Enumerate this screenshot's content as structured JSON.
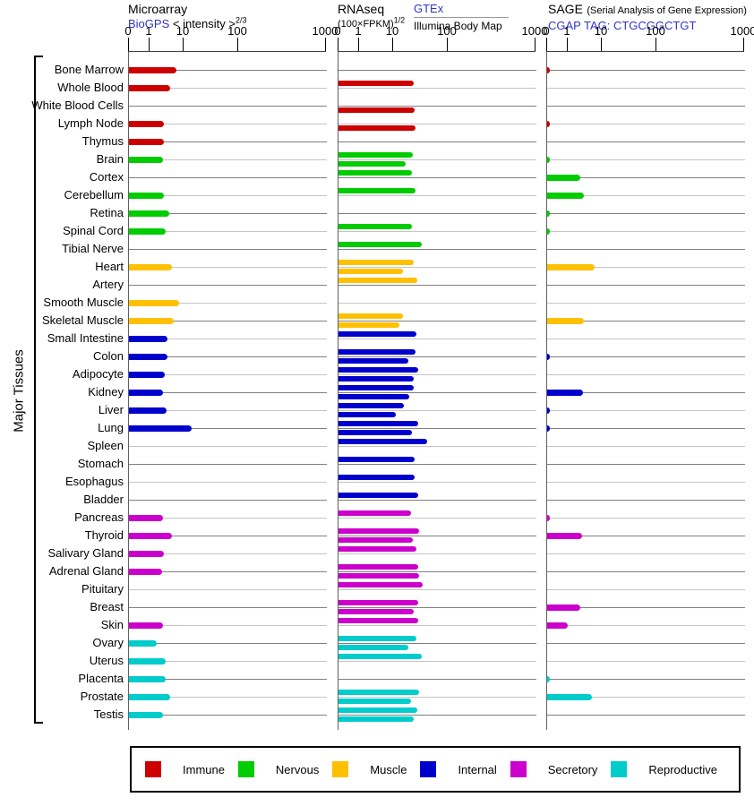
{
  "header": {
    "microarray": {
      "title": "Microarray",
      "source_link": "BioGPS",
      "unit_label": "< intensity >",
      "unit_exponent": "2/3"
    },
    "rnaseq": {
      "title": "RNAseq",
      "unit_label": "(100×FPKM)",
      "unit_exponent": "1/2",
      "source_link": "GTEx",
      "source_secondary": "Illumina Body Map"
    },
    "sage": {
      "title": "SAGE",
      "title_note": "(Serial Analysis of Gene Expression)",
      "source_link": "CGAP",
      "tag_text": "TAG: CTGCGGCTGT"
    }
  },
  "axis_ticks": [
    "0",
    "1",
    "10",
    "100",
    "1000"
  ],
  "side_label": "Major Tissues",
  "colors": {
    "link": "#3333CC",
    "grid_dark": "#808080",
    "grid_light": "#C4C4C4"
  },
  "legend": [
    {
      "label": "Immune",
      "color": "#CC0000"
    },
    {
      "label": "Nervous",
      "color": "#00CC00"
    },
    {
      "label": "Muscle",
      "color": "#FFC000"
    },
    {
      "label": "Internal",
      "color": "#0000CC"
    },
    {
      "label": "Secretory",
      "color": "#CC00CC"
    },
    {
      "label": "Reproductive",
      "color": "#00CCCC"
    }
  ],
  "chart_data": {
    "type": "bar",
    "orientation": "horizontal",
    "x_scale": "nonlinear expression scale with ticks 0, 1, 10, 100, 1000 per panel",
    "x_ticks": [
      0,
      1,
      10,
      100,
      1000
    ],
    "panels": [
      "Microarray (BioGPS)",
      "RNAseq (GTEx / Illumina Body Map)",
      "SAGE (CGAP)"
    ],
    "series": [
      "microarray",
      "rnaseq_gtex",
      "rnaseq_bodymap",
      "sage"
    ],
    "tissues": [
      {
        "name": "Bone Marrow",
        "group": "Immune",
        "microarray": 6,
        "rnaseq_gtex": null,
        "rnaseq_bodymap": null,
        "sage": 0.1
      },
      {
        "name": "Whole Blood",
        "group": "Immune",
        "microarray": 4,
        "rnaseq_gtex": 24,
        "rnaseq_bodymap": null,
        "sage": null
      },
      {
        "name": "White Blood Cells",
        "group": "Immune",
        "microarray": null,
        "rnaseq_gtex": null,
        "rnaseq_bodymap": 25,
        "sage": null
      },
      {
        "name": "Lymph Node",
        "group": "Immune",
        "microarray": 2.7,
        "rnaseq_gtex": null,
        "rnaseq_bodymap": 26,
        "sage": 0.1
      },
      {
        "name": "Thymus",
        "group": "Immune",
        "microarray": 2.7,
        "rnaseq_gtex": null,
        "rnaseq_bodymap": null,
        "sage": null
      },
      {
        "name": "Brain",
        "group": "Nervous",
        "microarray": 2.5,
        "rnaseq_gtex": 23,
        "rnaseq_bodymap": 17,
        "sage": 0.1
      },
      {
        "name": "Cortex",
        "group": "Nervous",
        "microarray": null,
        "rnaseq_gtex": 22,
        "rnaseq_bodymap": null,
        "sage": 2.4
      },
      {
        "name": "Cerebellum",
        "group": "Nervous",
        "microarray": 2.6,
        "rnaseq_gtex": 26,
        "rnaseq_bodymap": null,
        "sage": 3
      },
      {
        "name": "Retina",
        "group": "Nervous",
        "microarray": 3.9,
        "rnaseq_gtex": null,
        "rnaseq_bodymap": null,
        "sage": 0.1
      },
      {
        "name": "Spinal Cord",
        "group": "Nervous",
        "microarray": 3,
        "rnaseq_gtex": 22,
        "rnaseq_bodymap": null,
        "sage": 0.1
      },
      {
        "name": "Tibial Nerve",
        "group": "Nervous",
        "microarray": null,
        "rnaseq_gtex": 33,
        "rnaseq_bodymap": null,
        "sage": null
      },
      {
        "name": "Heart",
        "group": "Muscle",
        "microarray": 4.6,
        "rnaseq_gtex": 24,
        "rnaseq_bodymap": 15,
        "sage": 6
      },
      {
        "name": "Artery",
        "group": "Muscle",
        "microarray": null,
        "rnaseq_gtex": 28,
        "rnaseq_bodymap": null,
        "sage": null
      },
      {
        "name": "Smooth Muscle",
        "group": "Muscle",
        "microarray": 7.4,
        "rnaseq_gtex": null,
        "rnaseq_bodymap": null,
        "sage": null
      },
      {
        "name": "Skeletal Muscle",
        "group": "Muscle",
        "microarray": 5,
        "rnaseq_gtex": 15,
        "rnaseq_bodymap": 13,
        "sage": 2.9
      },
      {
        "name": "Small Intestine",
        "group": "Internal",
        "microarray": 3.4,
        "rnaseq_gtex": 27,
        "rnaseq_bodymap": null,
        "sage": null
      },
      {
        "name": "Colon",
        "group": "Internal",
        "microarray": 3.4,
        "rnaseq_gtex": 26,
        "rnaseq_bodymap": 19,
        "sage": 0.1
      },
      {
        "name": "Adipocyte",
        "group": "Internal",
        "microarray": 2.8,
        "rnaseq_gtex": 29,
        "rnaseq_bodymap": 24,
        "sage": null
      },
      {
        "name": "Kidney",
        "group": "Internal",
        "microarray": 2.5,
        "rnaseq_gtex": 24,
        "rnaseq_bodymap": 20,
        "sage": 2.8
      },
      {
        "name": "Liver",
        "group": "Internal",
        "microarray": 3.2,
        "rnaseq_gtex": 16,
        "rnaseq_bodymap": 11,
        "sage": 0.1
      },
      {
        "name": "Lung",
        "group": "Internal",
        "microarray": 14,
        "rnaseq_gtex": 29,
        "rnaseq_bodymap": 22,
        "sage": 0.1
      },
      {
        "name": "Spleen",
        "group": "Internal",
        "microarray": null,
        "rnaseq_gtex": 42,
        "rnaseq_bodymap": null,
        "sage": null
      },
      {
        "name": "Stomach",
        "group": "Internal",
        "microarray": null,
        "rnaseq_gtex": 25,
        "rnaseq_bodymap": null,
        "sage": null
      },
      {
        "name": "Esophagus",
        "group": "Internal",
        "microarray": null,
        "rnaseq_gtex": 25,
        "rnaseq_bodymap": null,
        "sage": null
      },
      {
        "name": "Bladder",
        "group": "Internal",
        "microarray": null,
        "rnaseq_gtex": 29,
        "rnaseq_bodymap": null,
        "sage": null
      },
      {
        "name": "Pancreas",
        "group": "Secretory",
        "microarray": 2.5,
        "rnaseq_gtex": 21,
        "rnaseq_bodymap": null,
        "sage": 0.1
      },
      {
        "name": "Thyroid",
        "group": "Secretory",
        "microarray": 4.6,
        "rnaseq_gtex": 30,
        "rnaseq_bodymap": 23,
        "sage": 2.6
      },
      {
        "name": "Salivary Gland",
        "group": "Secretory",
        "microarray": 2.6,
        "rnaseq_gtex": 27,
        "rnaseq_bodymap": null,
        "sage": null
      },
      {
        "name": "Adrenal Gland",
        "group": "Secretory",
        "microarray": 2.3,
        "rnaseq_gtex": 29,
        "rnaseq_bodymap": 30,
        "sage": null
      },
      {
        "name": "Pituitary",
        "group": "Secretory",
        "microarray": null,
        "rnaseq_gtex": 35,
        "rnaseq_bodymap": null,
        "sage": null
      },
      {
        "name": "Breast",
        "group": "Secretory",
        "microarray": null,
        "rnaseq_gtex": 29,
        "rnaseq_bodymap": 24,
        "sage": 2.4
      },
      {
        "name": "Skin",
        "group": "Secretory",
        "microarray": 2.5,
        "rnaseq_gtex": 29,
        "rnaseq_bodymap": null,
        "sage": 1
      },
      {
        "name": "Ovary",
        "group": "Reproductive",
        "microarray": 1.6,
        "rnaseq_gtex": 27,
        "rnaseq_bodymap": 19,
        "sage": null
      },
      {
        "name": "Uterus",
        "group": "Reproductive",
        "microarray": 3,
        "rnaseq_gtex": 33,
        "rnaseq_bodymap": null,
        "sage": null
      },
      {
        "name": "Placenta",
        "group": "Reproductive",
        "microarray": 3,
        "rnaseq_gtex": null,
        "rnaseq_bodymap": null,
        "sage": 0.1
      },
      {
        "name": "Prostate",
        "group": "Reproductive",
        "microarray": 4,
        "rnaseq_gtex": 30,
        "rnaseq_bodymap": 21,
        "sage": 5
      },
      {
        "name": "Testis",
        "group": "Reproductive",
        "microarray": 2.5,
        "rnaseq_gtex": 28,
        "rnaseq_bodymap": 24,
        "sage": null
      }
    ]
  }
}
